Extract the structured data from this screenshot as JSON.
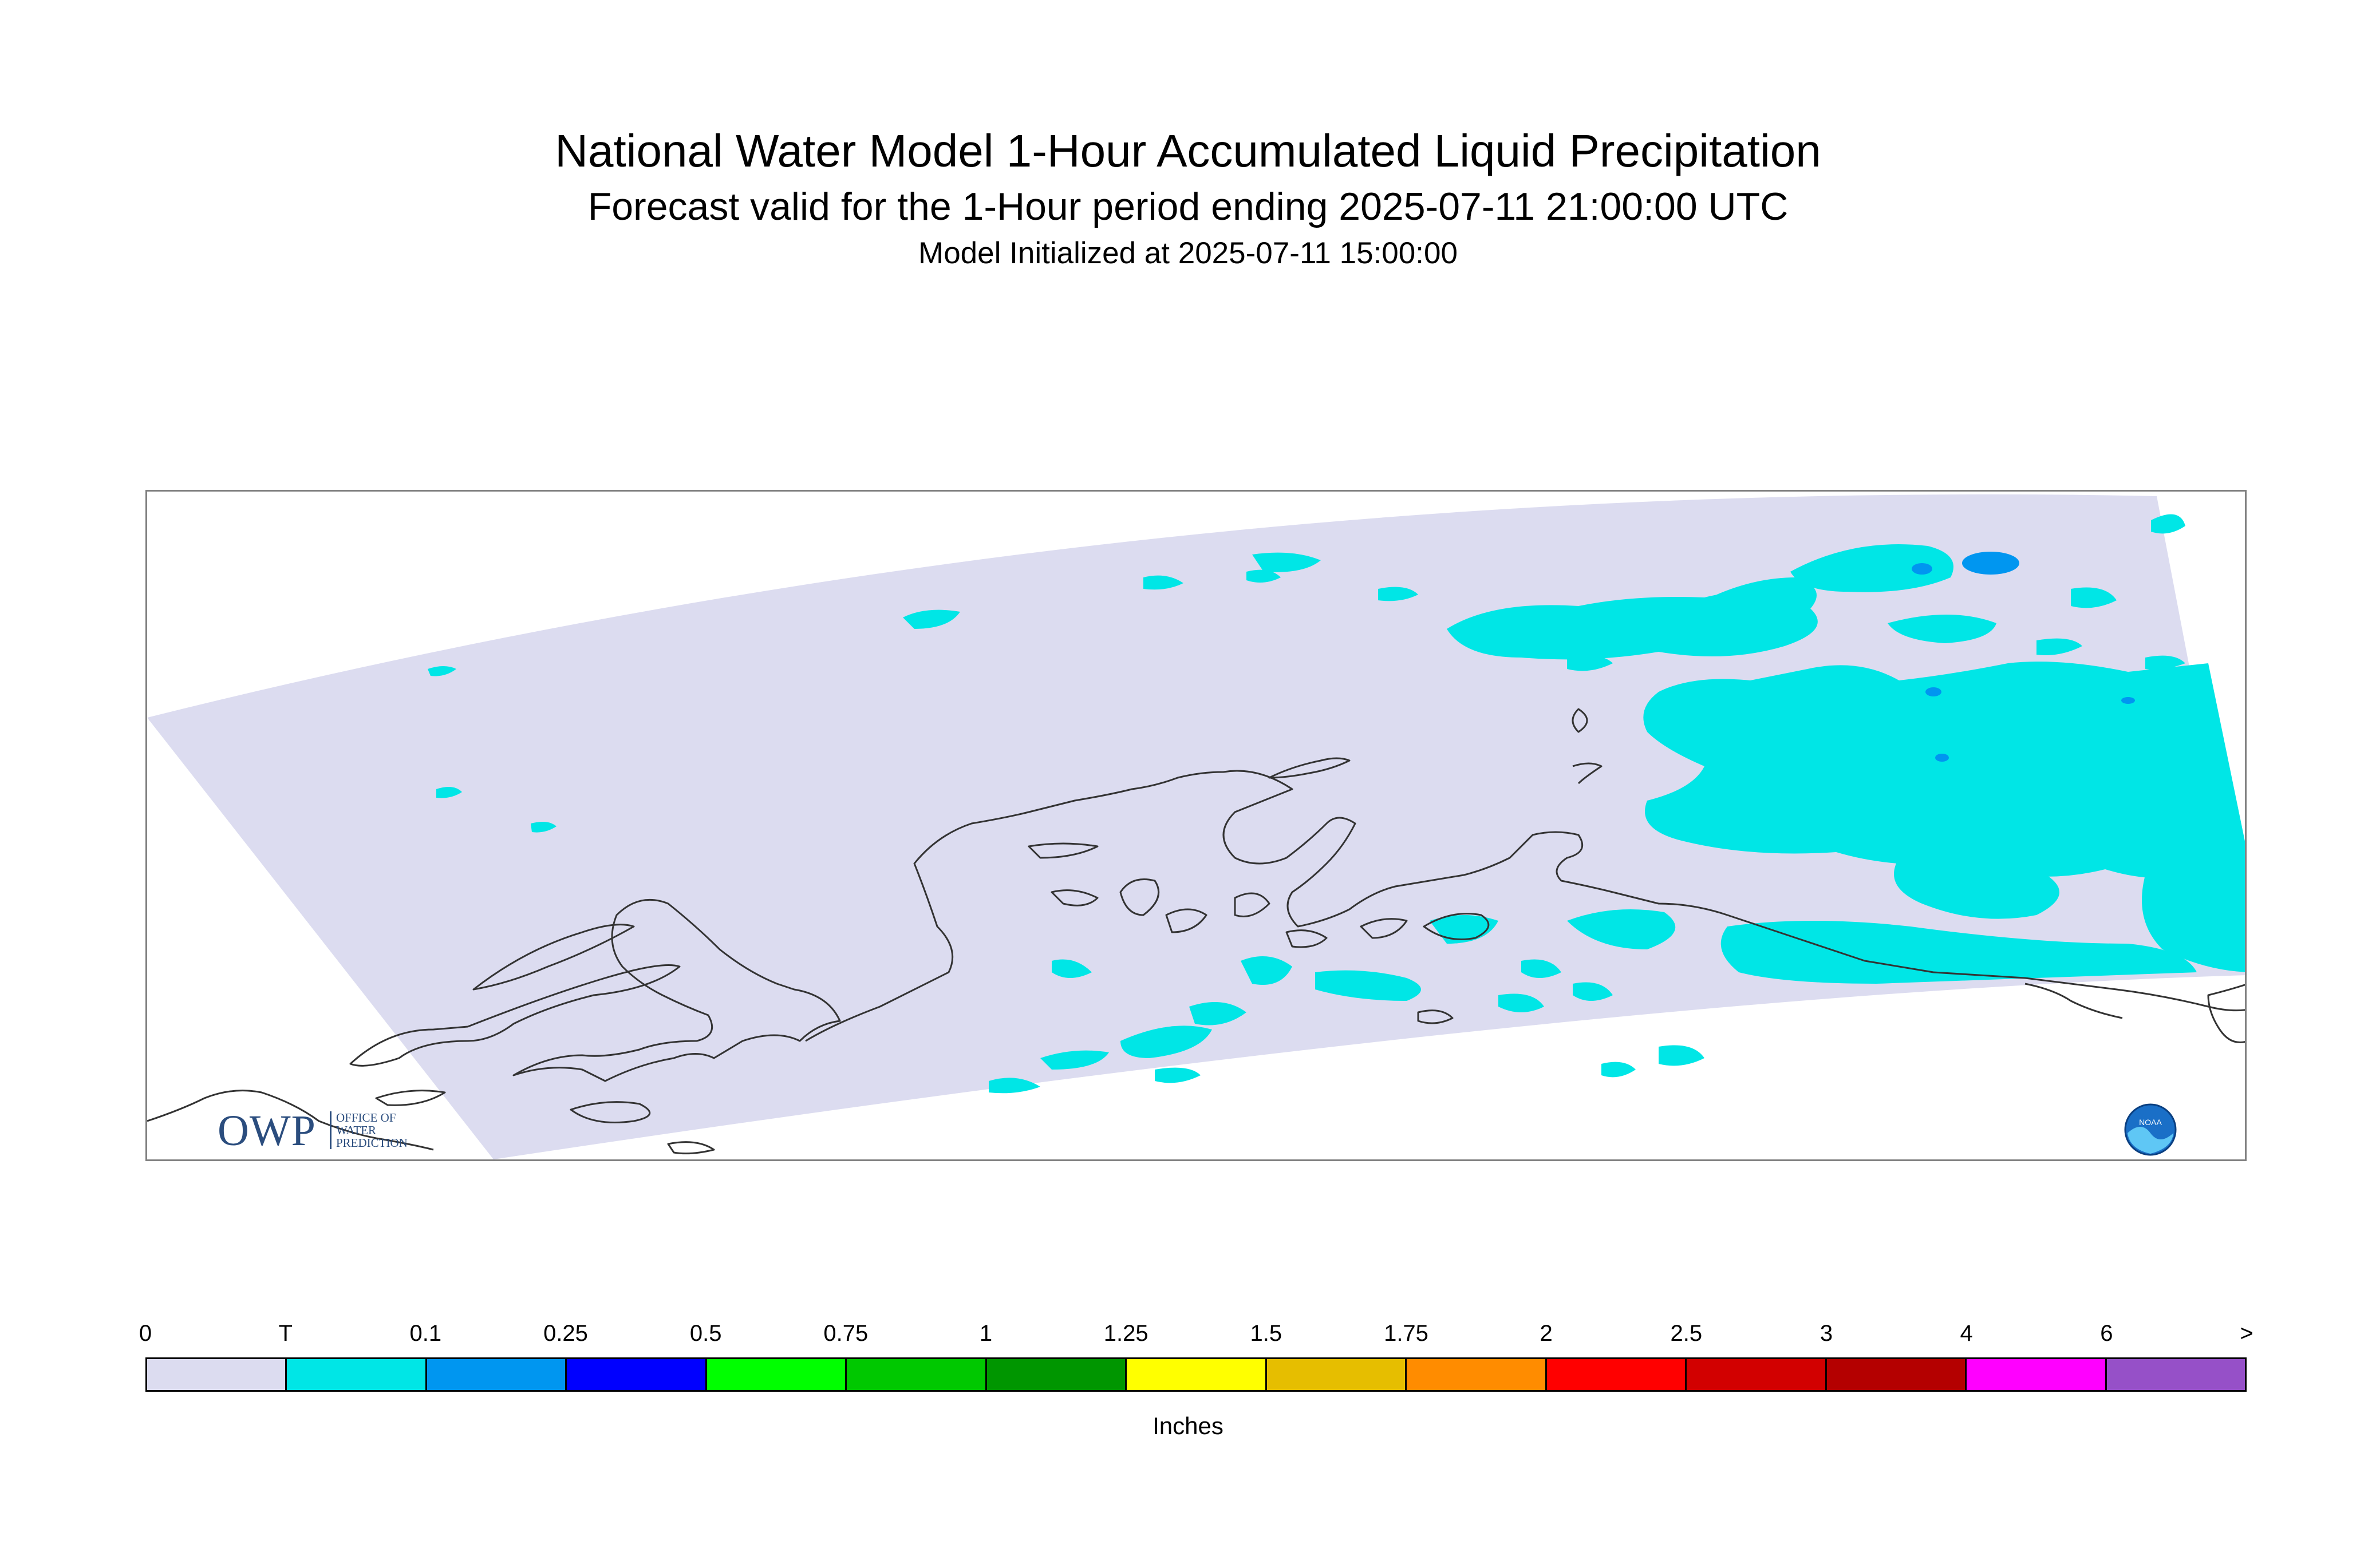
{
  "header": {
    "title": "National Water Model 1-Hour Accumulated Liquid Precipitation",
    "subtitle": "Forecast valid for the 1-Hour period ending 2025-07-11 21:00:00 UTC",
    "init": "Model Initialized at 2025-07-11 15:00:00"
  },
  "logos": {
    "owp_letters": "OWP",
    "owp_tag_1": "OFFICE OF",
    "owp_tag_2": "WATER",
    "owp_tag_3": "PREDICTION",
    "noaa": "NOAA"
  },
  "legend": {
    "units": "Inches",
    "labels": [
      "0",
      "T",
      "0.1",
      "0.25",
      "0.5",
      "0.75",
      "1",
      "1.25",
      "1.5",
      "1.75",
      "2",
      "2.5",
      "3",
      "4",
      "6",
      ">"
    ],
    "colors": [
      "#dcdcf0",
      "#00e6e6",
      "#0096f0",
      "#0000ff",
      "#00ff00",
      "#00c800",
      "#009600",
      "#ffff00",
      "#e6be00",
      "#ff8c00",
      "#ff0000",
      "#d20000",
      "#b40000",
      "#ff00ff",
      "#9650c8"
    ]
  },
  "map": {
    "background_color": "#dcdcf0",
    "trace_color": "#00e6e6",
    "light_color": "#0096f0",
    "coast_color": "#333333"
  }
}
